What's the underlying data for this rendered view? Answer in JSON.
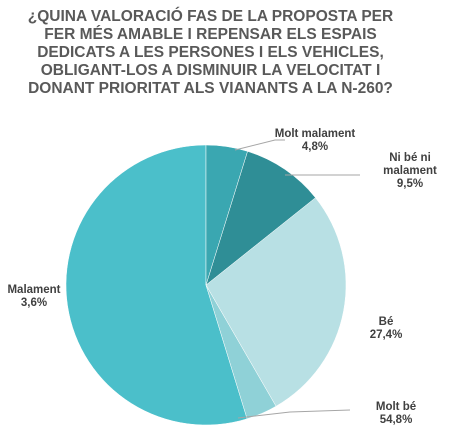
{
  "chart_data": {
    "type": "pie",
    "title": "¿QUINA VALORACIÓ FAS DE LA PROPOSTA PER FER MÉS AMABLE I REPENSAR ELS ESPAIS DEDICATS A LES PERSONES I ELS VEHICLES, OBLIGANT-LOS A DISMINUIR LA VELOCITAT I DONANT PRIORITAT ALS VIANANTS A LA N-260?",
    "categories": [
      "Molt malament",
      "Ni bé ni malament",
      "Bé",
      "Malament",
      "Molt bé"
    ],
    "values": [
      4.8,
      9.5,
      27.4,
      3.6,
      54.8
    ],
    "value_labels": [
      "4,8%",
      "9,5%",
      "27,4%",
      "3,6%",
      "54,8%"
    ],
    "colors": [
      "#3aa7b1",
      "#2f8e96",
      "#b8e0e4",
      "#8fd1d7",
      "#4bbfca"
    ]
  }
}
